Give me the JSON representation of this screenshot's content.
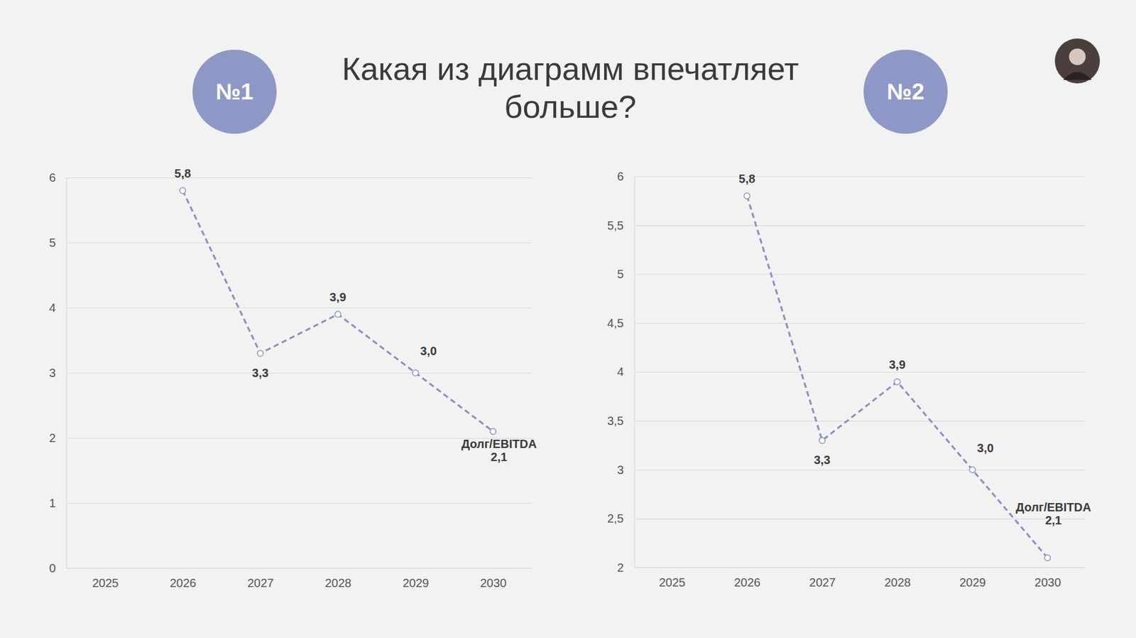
{
  "title": "Какая из диаграмм впечатляет больше?",
  "chart_data": [
    {
      "type": "line",
      "title": "№1",
      "categories": [
        "2025",
        "2026",
        "2027",
        "2028",
        "2029",
        "2030"
      ],
      "series": [
        {
          "name": "Долг/EBITDA",
          "color": "#8a90c0",
          "marker": "circle",
          "line_style": "dashed",
          "values": [
            null,
            5.8,
            3.3,
            3.9,
            3.0,
            2.1
          ],
          "value_labels": [
            null,
            "5,8",
            "3,3",
            "3,9",
            "3,0",
            "2,1"
          ]
        }
      ],
      "ylim": [
        0,
        6
      ],
      "yticks": [
        0,
        1,
        2,
        3,
        4,
        5,
        6
      ],
      "grid": true,
      "data_labels": true
    },
    {
      "type": "line",
      "title": "№2",
      "categories": [
        "2025",
        "2026",
        "2027",
        "2028",
        "2029",
        "2030"
      ],
      "series": [
        {
          "name": "Долг/EBITDA",
          "color": "#8a90c0",
          "marker": "circle",
          "line_style": "dashed",
          "values": [
            null,
            5.8,
            3.3,
            3.9,
            3.0,
            2.1
          ],
          "value_labels": [
            null,
            "5,8",
            "3,3",
            "3,9",
            "3,0",
            "2,1"
          ]
        }
      ],
      "ylim": [
        2,
        6
      ],
      "yticks": [
        2,
        {
          "value": 2.5,
          "label": "2,5"
        },
        3,
        {
          "value": 3.5,
          "label": "3,5"
        },
        4,
        {
          "value": 4.5,
          "label": "4,5"
        },
        5,
        {
          "value": 5.5,
          "label": "5,5"
        },
        6
      ],
      "grid": true,
      "data_labels": true
    }
  ]
}
